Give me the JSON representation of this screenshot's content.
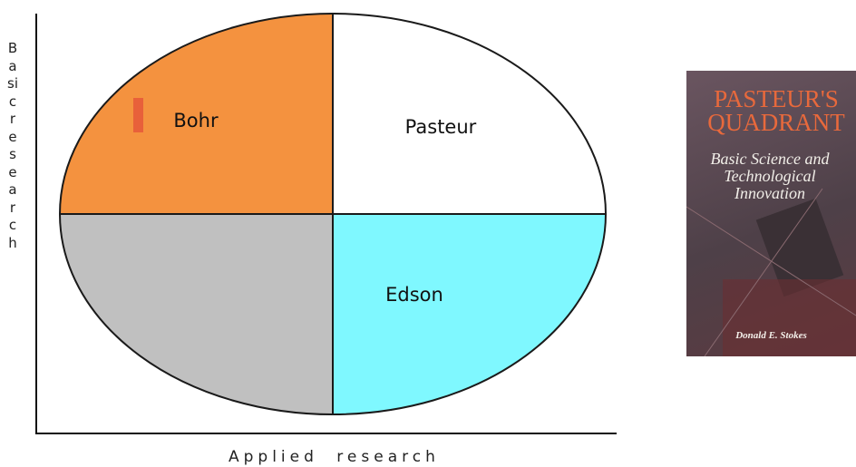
{
  "diagram": {
    "y_axis_label": "Basic research",
    "x_axis_label": "Applied research",
    "quadrants": [
      {
        "label": "Bohr"
      },
      {
        "label": "Pasteur"
      },
      {
        "label": "Edson"
      }
    ]
  },
  "book": {
    "title": "PASTEUR'S QUADRANT",
    "subtitle": "Basic Science and Technological Innovation",
    "author": "Donald E. Stokes"
  }
}
